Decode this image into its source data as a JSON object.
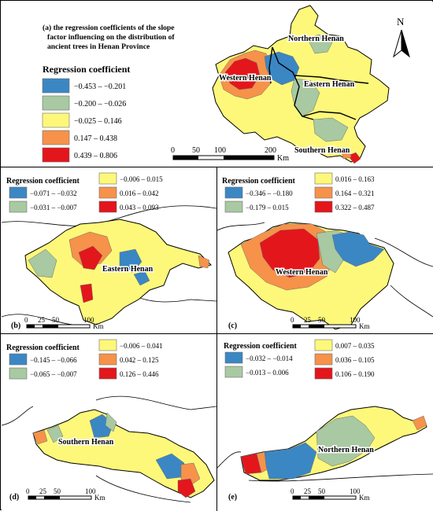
{
  "colors": {
    "blue": "#3a87c4",
    "green": "#a8c9a1",
    "yellow": "#fdf87a",
    "orange": "#f6924a",
    "red": "#e3161c",
    "boundary": "#6e6e6e"
  },
  "icons": {
    "north_arrow": "north-arrow-icon",
    "scale_bar": "scale-bar-icon"
  },
  "panels": {
    "a": {
      "title": [
        "(a) the regression coefficients of the slope",
        "factor influencing on the distribution of",
        "ancient    trees    in    Henan    Province"
      ],
      "legend_title": "Regression coefficient",
      "legend": [
        "−0.453 – −0.201",
        "−0.200 – −0.026",
        "−0.025 – 0.146",
        "0.147 – 0.438",
        "0.439 – 0.806"
      ],
      "north": "N",
      "regions": [
        "Northern Henan",
        "Western Henan",
        "Eastern Henan",
        "Southern Henan"
      ],
      "scale": {
        "ticks": [
          "0",
          "50",
          "100",
          "200"
        ],
        "unit": "Km"
      }
    },
    "b": {
      "label": "(b)",
      "legend_title": "Regression coefficient",
      "legend": [
        "−0.071 – −0.032",
        "−0.031 – −0.007",
        "−0.006 – 0.015",
        "0.016 – 0.042",
        "0.043 – 0.093"
      ],
      "region": "Eastern Henan",
      "scale": {
        "ticks": [
          "0",
          "25",
          "50",
          "100"
        ],
        "unit": "Km"
      }
    },
    "c": {
      "label": "(c)",
      "legend_title": "Regression coefficient",
      "legend": [
        "−0.346 – −0.180",
        "−0.179 – 0.015",
        "0.016 – 0.163",
        "0.164 – 0.321",
        "0.322 – 0.487"
      ],
      "region": "Western Henan",
      "scale": {
        "ticks": [
          "0",
          "25",
          "50",
          "100"
        ],
        "unit": "Km"
      }
    },
    "d": {
      "label": "(d)",
      "legend_title": "Regression coefficient",
      "legend": [
        "−0.145 – −0.066",
        "−0.065 – −0.007",
        "−0.006 – 0.041",
        "0.042 – 0.125",
        "0.126 – 0.446"
      ],
      "region": "Southern Henan",
      "scale": {
        "ticks": [
          "0",
          "25",
          "50",
          "100"
        ],
        "unit": "Km"
      }
    },
    "e": {
      "label": "(e)",
      "legend_title": "Regression coefficient",
      "legend": [
        "−0.032 – −0.014",
        "−0.013 – 0.006",
        "0.007 – 0.035",
        "0.036 – 0.105",
        "0.106 – 0.190"
      ],
      "region": "Northern Henan",
      "scale": {
        "ticks": [
          "0",
          "25",
          "50",
          "100"
        ],
        "unit": "Km"
      }
    }
  }
}
